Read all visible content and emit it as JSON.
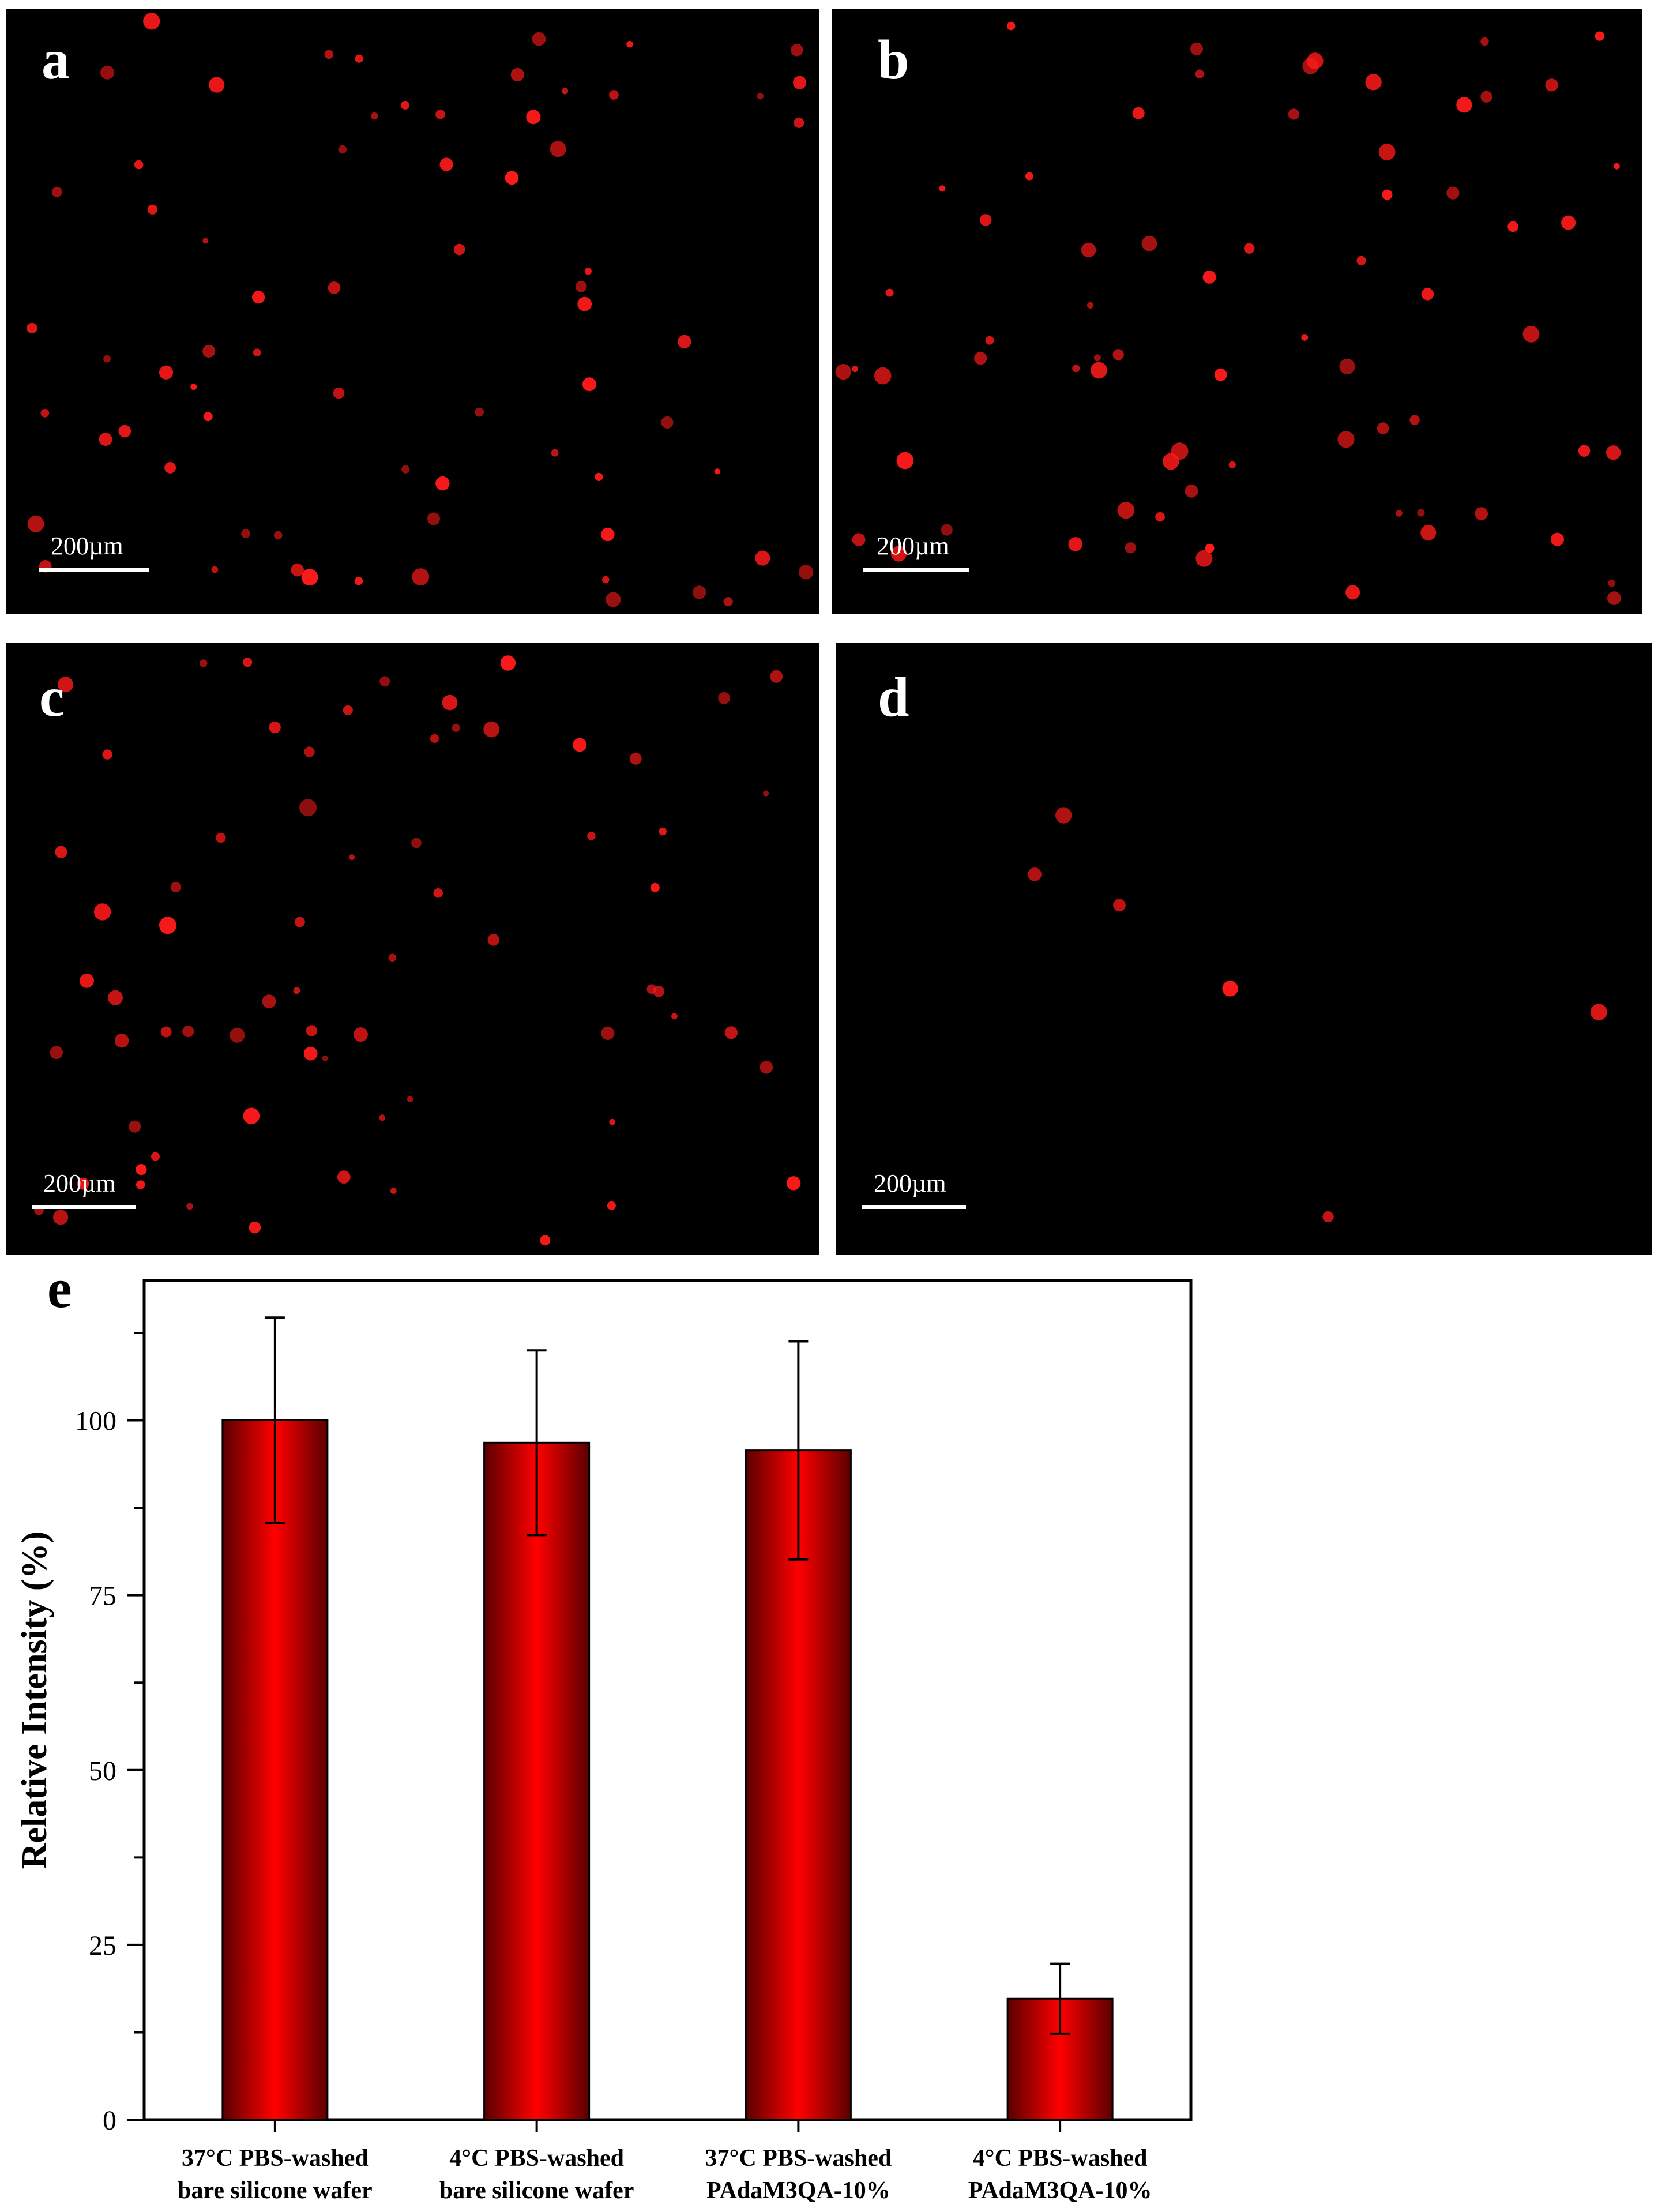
{
  "panels": [
    {
      "letter": "a",
      "scale_label": "200µm",
      "image": "fluorescence-micrograph",
      "density": "high"
    },
    {
      "letter": "b",
      "scale_label": "200µm",
      "image": "fluorescence-micrograph",
      "density": "high"
    },
    {
      "letter": "c",
      "scale_label": "200µm",
      "image": "fluorescence-micrograph",
      "density": "high"
    },
    {
      "letter": "d",
      "scale_label": "200µm",
      "image": "fluorescence-micrograph",
      "density": "low"
    }
  ],
  "chart_letter": "e",
  "colors": {
    "bar_center": "#ff0000",
    "bar_edge": "#5a0000",
    "micrograph_background": "#000000",
    "spot": "#ff1a1a"
  },
  "chart_data": {
    "type": "bar",
    "categories": [
      [
        "37°C PBS-washed",
        "bare silicone wafer"
      ],
      [
        "4°C PBS-washed",
        "bare silicone wafer"
      ],
      [
        "37°C PBS-washed",
        "PAdaM3QA-10%"
      ],
      [
        "4°C PBS-washed",
        "PAdaM3QA-10%"
      ]
    ],
    "values": [
      100,
      96.8,
      95.7,
      17.3
    ],
    "errors": [
      14.7,
      13.2,
      15.6,
      5.0
    ],
    "ylabel": "Relative Intensity (%)",
    "xlabel": "",
    "ylim": [
      0,
      120
    ],
    "yticks": [
      0,
      25,
      50,
      75,
      100
    ],
    "grid": false
  }
}
